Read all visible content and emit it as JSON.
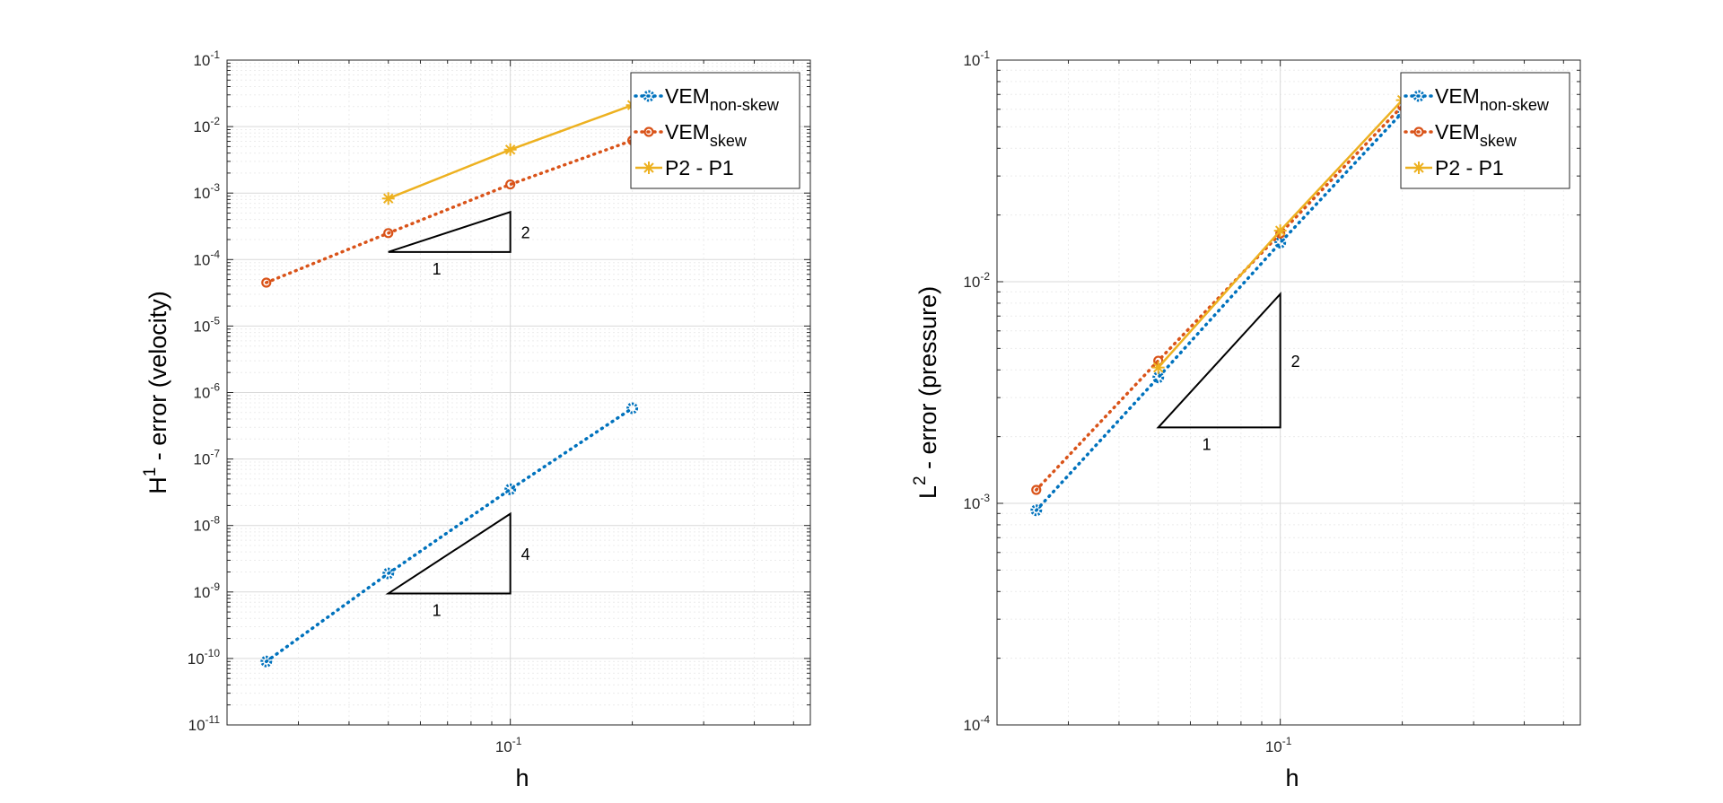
{
  "chart_data": [
    {
      "type": "line",
      "xscale": "log",
      "yscale": "log",
      "xlabel": "h",
      "ylabel": "H^1 - error (velocity)",
      "ylabel_main": "H",
      "ylabel_sup": "1",
      "ylabel_rest": " - error (velocity)",
      "xlim": [
        0.02,
        0.55
      ],
      "ylim": [
        1e-11,
        0.1
      ],
      "xticks": [
        {
          "value": 0.1,
          "base": "10",
          "exp": "-1"
        }
      ],
      "yticks": [
        {
          "value": 1e-11,
          "base": "10",
          "exp": "-11"
        },
        {
          "value": 1e-10,
          "base": "10",
          "exp": "-10"
        },
        {
          "value": 1e-09,
          "base": "10",
          "exp": "-9"
        },
        {
          "value": 1e-08,
          "base": "10",
          "exp": "-8"
        },
        {
          "value": 1e-07,
          "base": "10",
          "exp": "-7"
        },
        {
          "value": 1e-06,
          "base": "10",
          "exp": "-6"
        },
        {
          "value": 1e-05,
          "base": "10",
          "exp": "-5"
        },
        {
          "value": 0.0001,
          "base": "10",
          "exp": "-4"
        },
        {
          "value": 0.001,
          "base": "10",
          "exp": "-3"
        },
        {
          "value": 0.01,
          "base": "10",
          "exp": "-2"
        },
        {
          "value": 0.1,
          "base": "10",
          "exp": "-1"
        }
      ],
      "grid": true,
      "legend_position": "top-right",
      "series": [
        {
          "name": "VEM",
          "sub": "non-skew",
          "color": "#0072BD",
          "style": "dotted",
          "marker": "flower",
          "x": [
            0.025,
            0.05,
            0.1,
            0.2
          ],
          "y": [
            9e-11,
            1.9e-09,
            3.5e-08,
            5.8e-07
          ]
        },
        {
          "name": "VEM",
          "sub": "skew",
          "color": "#D95319",
          "style": "dotted",
          "marker": "circle",
          "x": [
            0.025,
            0.05,
            0.1,
            0.2
          ],
          "y": [
            4.5e-05,
            0.00025,
            0.00135,
            0.0062
          ]
        },
        {
          "name": "P2 - P1",
          "sub": "",
          "color": "#EDB120",
          "style": "solid",
          "marker": "asterisk",
          "x": [
            0.05,
            0.1,
            0.2
          ],
          "y": [
            0.00083,
            0.0045,
            0.021
          ]
        }
      ],
      "slope_triangles": [
        {
          "x0": 0.05,
          "x1": 0.1,
          "y0": 0.00013,
          "y1": 0.00052,
          "run_label": "1",
          "rise_label": "2"
        },
        {
          "x0": 0.05,
          "x1": 0.1,
          "y0": 9.5e-10,
          "y1": 1.5e-08,
          "run_label": "1",
          "rise_label": "4"
        }
      ]
    },
    {
      "type": "line",
      "xscale": "log",
      "yscale": "log",
      "xlabel": "h",
      "ylabel": "L^2 - error (pressure)",
      "ylabel_main": "L",
      "ylabel_sup": "2",
      "ylabel_rest": " - error (pressure)",
      "xlim": [
        0.02,
        0.55
      ],
      "ylim": [
        0.0001,
        0.1
      ],
      "xticks": [
        {
          "value": 0.1,
          "base": "10",
          "exp": "-1"
        }
      ],
      "yticks": [
        {
          "value": 0.0001,
          "base": "10",
          "exp": "-4"
        },
        {
          "value": 0.001,
          "base": "10",
          "exp": "-3"
        },
        {
          "value": 0.01,
          "base": "10",
          "exp": "-2"
        },
        {
          "value": 0.1,
          "base": "10",
          "exp": "-1"
        }
      ],
      "grid": true,
      "legend_position": "top-right",
      "series": [
        {
          "name": "VEM",
          "sub": "non-skew",
          "color": "#0072BD",
          "style": "dotted",
          "marker": "flower",
          "x": [
            0.025,
            0.05,
            0.1,
            0.2
          ],
          "y": [
            0.00093,
            0.0037,
            0.015,
            0.058
          ]
        },
        {
          "name": "VEM",
          "sub": "skew",
          "color": "#D95319",
          "style": "dotted",
          "marker": "circle",
          "x": [
            0.025,
            0.05,
            0.1,
            0.2
          ],
          "y": [
            0.00115,
            0.0044,
            0.0165,
            0.062
          ]
        },
        {
          "name": "P2 - P1",
          "sub": "",
          "color": "#EDB120",
          "style": "solid",
          "marker": "asterisk",
          "x": [
            0.05,
            0.1,
            0.2
          ],
          "y": [
            0.0041,
            0.017,
            0.066
          ]
        }
      ],
      "slope_triangles": [
        {
          "x0": 0.05,
          "x1": 0.1,
          "y0": 0.0022,
          "y1": 0.0088,
          "run_label": "1",
          "rise_label": "2"
        }
      ]
    }
  ]
}
